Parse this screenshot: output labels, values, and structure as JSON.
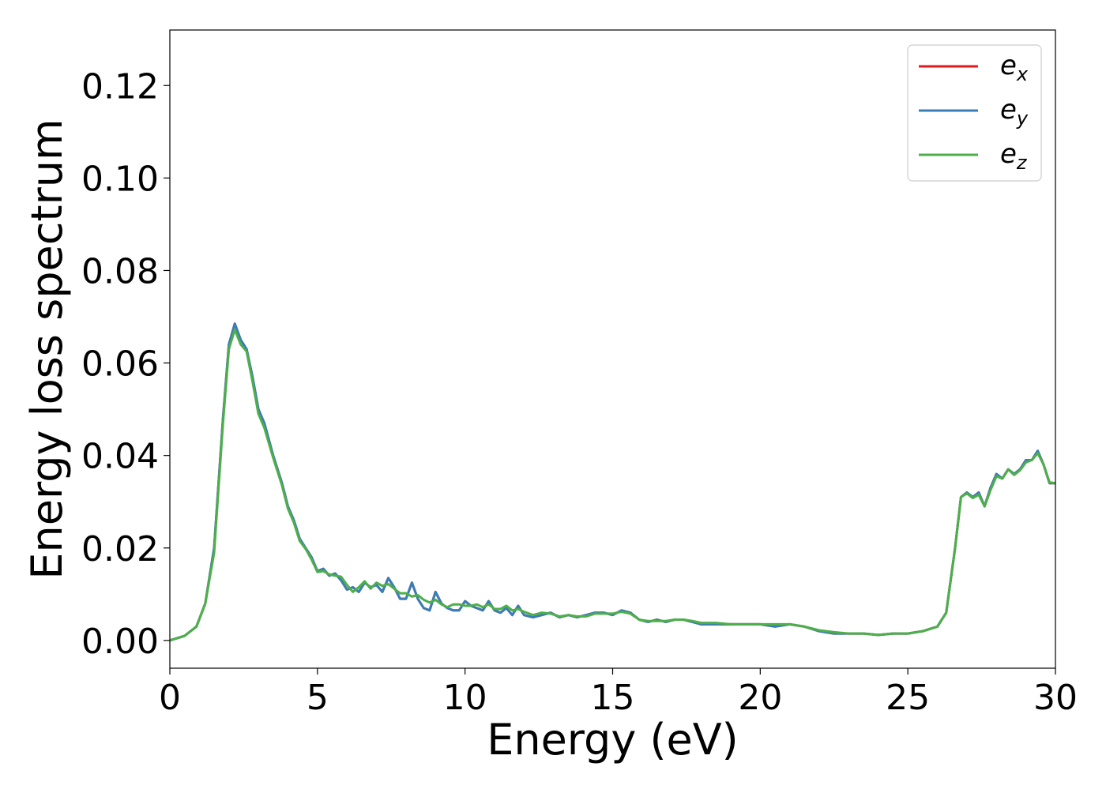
{
  "chart_data": {
    "type": "line",
    "title": "",
    "xlabel": "Energy (eV)",
    "ylabel": "Energy loss spectrum",
    "xlim": [
      0,
      30
    ],
    "ylim": [
      -0.006,
      0.132
    ],
    "xticks": [
      0,
      5,
      10,
      15,
      20,
      25,
      30
    ],
    "yticks": [
      0.0,
      0.02,
      0.04,
      0.06,
      0.08,
      0.1,
      0.12
    ],
    "xtick_labels": [
      "0",
      "5",
      "10",
      "15",
      "20",
      "25",
      "30"
    ],
    "ytick_labels": [
      "0.00",
      "0.02",
      "0.04",
      "0.06",
      "0.08",
      "0.10",
      "0.12"
    ],
    "grid": false,
    "legend_position": "top-right",
    "series": [
      {
        "name": "e_x",
        "legend_base": "e",
        "legend_sub": "x",
        "color": "#e41a1c",
        "x": [
          0,
          0.5,
          0.9,
          1.2,
          1.5,
          1.8,
          2.0,
          2.2,
          2.4,
          2.6,
          2.8,
          3.0,
          3.2,
          3.5,
          3.8,
          4.0,
          4.2,
          4.4,
          4.6,
          4.8,
          5.0,
          5.2,
          5.4,
          5.6,
          5.8,
          6.0,
          6.2,
          6.4,
          6.6,
          6.8,
          7.0,
          7.2,
          7.4,
          7.6,
          7.8,
          8.0,
          8.2,
          8.4,
          8.6,
          8.8,
          9.0,
          9.2,
          9.4,
          9.6,
          9.8,
          10.0,
          10.2,
          10.4,
          10.6,
          10.8,
          11.0,
          11.2,
          11.4,
          11.6,
          11.8,
          12.0,
          12.3,
          12.6,
          12.9,
          13.2,
          13.5,
          13.8,
          14.1,
          14.4,
          14.7,
          15.0,
          15.3,
          15.6,
          15.9,
          16.2,
          16.5,
          16.8,
          17.1,
          17.4,
          17.7,
          18.0,
          18.5,
          19.0,
          19.5,
          20.0,
          20.5,
          21.0,
          21.5,
          22.0,
          22.5,
          23.0,
          23.5,
          24.0,
          24.5,
          25.0,
          25.5,
          26.0,
          26.3,
          26.6,
          26.8,
          27.0,
          27.2,
          27.4,
          27.6,
          27.8,
          28.0,
          28.2,
          28.4,
          28.6,
          28.8,
          29.0,
          29.2,
          29.4,
          29.6,
          29.8,
          30.0
        ],
        "y": [
          0.0,
          0.001,
          0.003,
          0.008,
          0.02,
          0.048,
          0.064,
          0.0685,
          0.065,
          0.063,
          0.057,
          0.05,
          0.047,
          0.04,
          0.034,
          0.029,
          0.026,
          0.022,
          0.02,
          0.018,
          0.015,
          0.0155,
          0.014,
          0.0145,
          0.013,
          0.011,
          0.0115,
          0.0105,
          0.0125,
          0.0115,
          0.012,
          0.0105,
          0.0135,
          0.0115,
          0.009,
          0.009,
          0.0125,
          0.009,
          0.007,
          0.0065,
          0.0105,
          0.008,
          0.007,
          0.0065,
          0.0065,
          0.0085,
          0.0075,
          0.007,
          0.0065,
          0.0085,
          0.0065,
          0.006,
          0.007,
          0.0055,
          0.0075,
          0.0055,
          0.005,
          0.0055,
          0.006,
          0.005,
          0.0055,
          0.005,
          0.0055,
          0.006,
          0.006,
          0.0055,
          0.0065,
          0.006,
          0.0045,
          0.004,
          0.0045,
          0.004,
          0.0045,
          0.0045,
          0.004,
          0.0035,
          0.0035,
          0.0035,
          0.0035,
          0.0035,
          0.003,
          0.0035,
          0.003,
          0.002,
          0.0015,
          0.0015,
          0.0015,
          0.0012,
          0.0015,
          0.0015,
          0.002,
          0.003,
          0.006,
          0.02,
          0.031,
          0.032,
          0.031,
          0.032,
          0.029,
          0.033,
          0.036,
          0.035,
          0.037,
          0.036,
          0.037,
          0.039,
          0.039,
          0.041,
          0.038,
          0.034,
          0.034
        ]
      },
      {
        "name": "e_y",
        "legend_base": "e",
        "legend_sub": "y",
        "color": "#377eb8",
        "x": [
          0,
          0.5,
          0.9,
          1.2,
          1.5,
          1.8,
          2.0,
          2.2,
          2.4,
          2.6,
          2.8,
          3.0,
          3.2,
          3.5,
          3.8,
          4.0,
          4.2,
          4.4,
          4.6,
          4.8,
          5.0,
          5.2,
          5.4,
          5.6,
          5.8,
          6.0,
          6.2,
          6.4,
          6.6,
          6.8,
          7.0,
          7.2,
          7.4,
          7.6,
          7.8,
          8.0,
          8.2,
          8.4,
          8.6,
          8.8,
          9.0,
          9.2,
          9.4,
          9.6,
          9.8,
          10.0,
          10.2,
          10.4,
          10.6,
          10.8,
          11.0,
          11.2,
          11.4,
          11.6,
          11.8,
          12.0,
          12.3,
          12.6,
          12.9,
          13.2,
          13.5,
          13.8,
          14.1,
          14.4,
          14.7,
          15.0,
          15.3,
          15.6,
          15.9,
          16.2,
          16.5,
          16.8,
          17.1,
          17.4,
          17.7,
          18.0,
          18.5,
          19.0,
          19.5,
          20.0,
          20.5,
          21.0,
          21.5,
          22.0,
          22.5,
          23.0,
          23.5,
          24.0,
          24.5,
          25.0,
          25.5,
          26.0,
          26.3,
          26.6,
          26.8,
          27.0,
          27.2,
          27.4,
          27.6,
          27.8,
          28.0,
          28.2,
          28.4,
          28.6,
          28.8,
          29.0,
          29.2,
          29.4,
          29.6,
          29.8,
          30.0
        ],
        "y": [
          0.0,
          0.001,
          0.003,
          0.008,
          0.02,
          0.048,
          0.064,
          0.0685,
          0.065,
          0.063,
          0.057,
          0.05,
          0.047,
          0.04,
          0.034,
          0.029,
          0.026,
          0.022,
          0.02,
          0.018,
          0.015,
          0.0155,
          0.014,
          0.0145,
          0.013,
          0.011,
          0.0115,
          0.0105,
          0.0125,
          0.0115,
          0.012,
          0.0105,
          0.0135,
          0.0115,
          0.009,
          0.009,
          0.0125,
          0.009,
          0.007,
          0.0065,
          0.0105,
          0.008,
          0.007,
          0.0065,
          0.0065,
          0.0085,
          0.0075,
          0.007,
          0.0065,
          0.0085,
          0.0065,
          0.006,
          0.007,
          0.0055,
          0.0075,
          0.0055,
          0.005,
          0.0055,
          0.006,
          0.005,
          0.0055,
          0.005,
          0.0055,
          0.006,
          0.006,
          0.0055,
          0.0065,
          0.006,
          0.0045,
          0.004,
          0.0045,
          0.004,
          0.0045,
          0.0045,
          0.004,
          0.0035,
          0.0035,
          0.0035,
          0.0035,
          0.0035,
          0.003,
          0.0035,
          0.003,
          0.002,
          0.0015,
          0.0015,
          0.0015,
          0.0012,
          0.0015,
          0.0015,
          0.002,
          0.003,
          0.006,
          0.02,
          0.031,
          0.032,
          0.031,
          0.032,
          0.029,
          0.033,
          0.036,
          0.035,
          0.037,
          0.036,
          0.037,
          0.039,
          0.039,
          0.041,
          0.038,
          0.034,
          0.034
        ]
      },
      {
        "name": "e_z",
        "legend_base": "e",
        "legend_sub": "z",
        "color": "#4daf4a",
        "x": [
          0,
          0.5,
          0.9,
          1.2,
          1.5,
          1.8,
          2.0,
          2.2,
          2.4,
          2.6,
          2.8,
          3.0,
          3.2,
          3.5,
          3.8,
          4.0,
          4.2,
          4.4,
          4.6,
          4.8,
          5.0,
          5.2,
          5.4,
          5.6,
          5.8,
          6.0,
          6.2,
          6.4,
          6.6,
          6.8,
          7.0,
          7.2,
          7.4,
          7.6,
          7.8,
          8.0,
          8.2,
          8.4,
          8.6,
          8.8,
          9.0,
          9.2,
          9.4,
          9.6,
          9.8,
          10.0,
          10.2,
          10.4,
          10.6,
          10.8,
          11.0,
          11.2,
          11.4,
          11.6,
          11.8,
          12.0,
          12.3,
          12.6,
          12.9,
          13.2,
          13.5,
          13.8,
          14.1,
          14.4,
          14.7,
          15.0,
          15.3,
          15.6,
          15.9,
          16.2,
          16.5,
          16.8,
          17.1,
          17.4,
          17.7,
          18.0,
          18.5,
          19.0,
          19.5,
          20.0,
          20.5,
          21.0,
          21.5,
          22.0,
          22.5,
          23.0,
          23.5,
          24.0,
          24.5,
          25.0,
          25.5,
          26.0,
          26.3,
          26.6,
          26.8,
          27.0,
          27.2,
          27.4,
          27.6,
          27.8,
          28.0,
          28.2,
          28.4,
          28.6,
          28.8,
          29.0,
          29.2,
          29.4,
          29.6,
          29.8,
          30.0
        ],
        "y": [
          0.0,
          0.001,
          0.003,
          0.008,
          0.019,
          0.047,
          0.063,
          0.0672,
          0.064,
          0.0625,
          0.056,
          0.049,
          0.046,
          0.0395,
          0.0335,
          0.0285,
          0.0255,
          0.0215,
          0.0198,
          0.0175,
          0.0148,
          0.015,
          0.0143,
          0.014,
          0.0138,
          0.012,
          0.0105,
          0.0115,
          0.0128,
          0.0112,
          0.0125,
          0.0118,
          0.0122,
          0.0112,
          0.0102,
          0.0102,
          0.0095,
          0.0098,
          0.0088,
          0.0082,
          0.0088,
          0.0078,
          0.0072,
          0.0078,
          0.0078,
          0.0075,
          0.0075,
          0.0078,
          0.0072,
          0.0078,
          0.0068,
          0.0068,
          0.0075,
          0.0065,
          0.0068,
          0.0062,
          0.0055,
          0.006,
          0.0058,
          0.0052,
          0.0055,
          0.0052,
          0.0052,
          0.0058,
          0.0058,
          0.0058,
          0.0062,
          0.0058,
          0.0045,
          0.0042,
          0.0042,
          0.0042,
          0.0045,
          0.0045,
          0.0042,
          0.0038,
          0.0038,
          0.0035,
          0.0035,
          0.0035,
          0.0035,
          0.0035,
          0.003,
          0.0022,
          0.0018,
          0.0015,
          0.0015,
          0.0012,
          0.0015,
          0.0015,
          0.002,
          0.003,
          0.006,
          0.02,
          0.031,
          0.0318,
          0.0308,
          0.0315,
          0.029,
          0.0325,
          0.0355,
          0.035,
          0.037,
          0.0358,
          0.0368,
          0.0385,
          0.039,
          0.0405,
          0.038,
          0.0342,
          0.034
        ]
      }
    ]
  }
}
